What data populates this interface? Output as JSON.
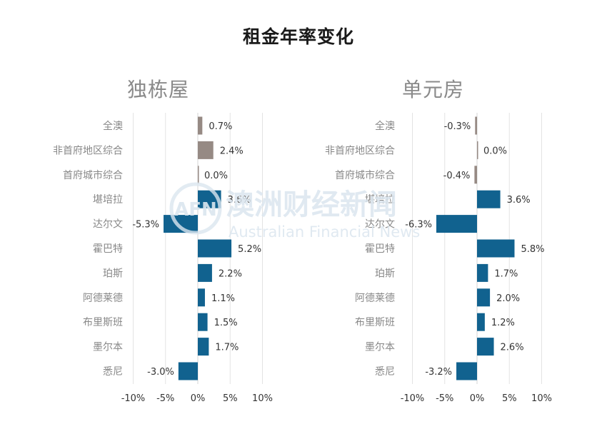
{
  "title": "租金年率变化",
  "watermark": {
    "brand_cn": "澳洲财经新闻",
    "brand_en": "Australian Financial News",
    "logo_text": "AFN"
  },
  "colors": {
    "positive_bar": "#11628f",
    "gray_bar": "#968a84",
    "grid": "#e3e3e3",
    "label_gray": "#888888",
    "value_text": "#333333"
  },
  "chart_data": [
    {
      "type": "bar",
      "orientation": "horizontal",
      "title": "独栋屋",
      "categories": [
        "全澳",
        "非首府地区综合",
        "首府城市综合",
        "堪培拉",
        "达尔文",
        "霍巴特",
        "珀斯",
        "阿德莱德",
        "布里斯班",
        "墨尔本",
        "悉尼"
      ],
      "values": [
        0.7,
        2.4,
        0.0,
        3.6,
        -5.3,
        5.2,
        2.2,
        1.1,
        1.5,
        1.7,
        -3.0
      ],
      "value_labels": [
        "0.7%",
        "2.4%",
        "0.0%",
        "3.6%",
        "-5.3%",
        "5.2%",
        "2.2%",
        "1.1%",
        "1.5%",
        "1.7%",
        "-3.0%"
      ],
      "bar_colors": [
        "#968a84",
        "#968a84",
        "#968a84",
        "#11628f",
        "#11628f",
        "#11628f",
        "#11628f",
        "#11628f",
        "#11628f",
        "#11628f",
        "#11628f"
      ],
      "xlim": [
        -10,
        10
      ],
      "xticks": [
        -10,
        -5,
        0,
        5,
        10
      ],
      "xtick_labels": [
        "-10%",
        "-5%",
        "0%",
        "5%",
        "10%"
      ],
      "grid": true
    },
    {
      "type": "bar",
      "orientation": "horizontal",
      "title": "单元房",
      "categories": [
        "全澳",
        "非首府地区综合",
        "首府城市综合",
        "堪培拉",
        "达尔文",
        "霍巴特",
        "珀斯",
        "阿德莱德",
        "布里斯班",
        "墨尔本",
        "悉尼"
      ],
      "values": [
        -0.3,
        0.0,
        -0.4,
        3.6,
        -6.3,
        5.8,
        1.7,
        2.0,
        1.2,
        2.6,
        -3.2
      ],
      "value_labels": [
        "-0.3%",
        "0.0%",
        "-0.4%",
        "3.6%",
        "-6.3%",
        "5.8%",
        "1.7%",
        "2.0%",
        "1.2%",
        "2.6%",
        "-3.2%"
      ],
      "bar_colors": [
        "#968a84",
        "#968a84",
        "#968a84",
        "#11628f",
        "#11628f",
        "#11628f",
        "#11628f",
        "#11628f",
        "#11628f",
        "#11628f",
        "#11628f"
      ],
      "xlim": [
        -10,
        10
      ],
      "xticks": [
        -10,
        -5,
        0,
        5,
        10
      ],
      "xtick_labels": [
        "-10%",
        "-5%",
        "0%",
        "5%",
        "10%"
      ],
      "grid": true
    }
  ]
}
